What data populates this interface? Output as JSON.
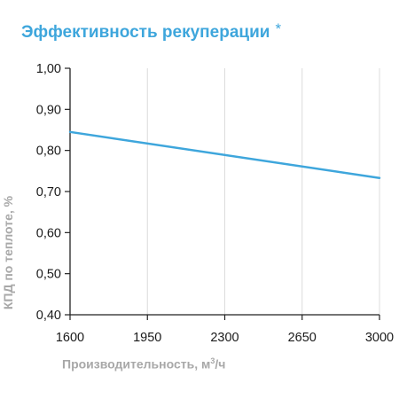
{
  "title": "Эффективность рекуперации",
  "title_mark": "*",
  "chart_data": {
    "type": "line",
    "title": "Эффективность рекуперации *",
    "xlabel_main": "Производительность, м",
    "xlabel_sup": "3",
    "xlabel_tail": "/ч",
    "ylabel": "КПД по теплоте, %",
    "xlim": [
      1600,
      3000
    ],
    "ylim": [
      0.4,
      1.0
    ],
    "x_ticks": [
      1600,
      1950,
      2300,
      2650,
      3000
    ],
    "x_tick_labels": [
      "1600",
      "1950",
      "2300",
      "2650",
      "3000"
    ],
    "y_ticks": [
      0.4,
      0.5,
      0.6,
      0.7,
      0.8,
      0.9,
      1.0
    ],
    "y_tick_labels": [
      "0,40",
      "0,50",
      "0,60",
      "0,70",
      "0,80",
      "0,90",
      "1,00"
    ],
    "grid": "vertical",
    "series": [
      {
        "x": [
          1600,
          3000
        ],
        "y": [
          0.845,
          0.733
        ],
        "color": "#3ea6dc"
      }
    ]
  }
}
